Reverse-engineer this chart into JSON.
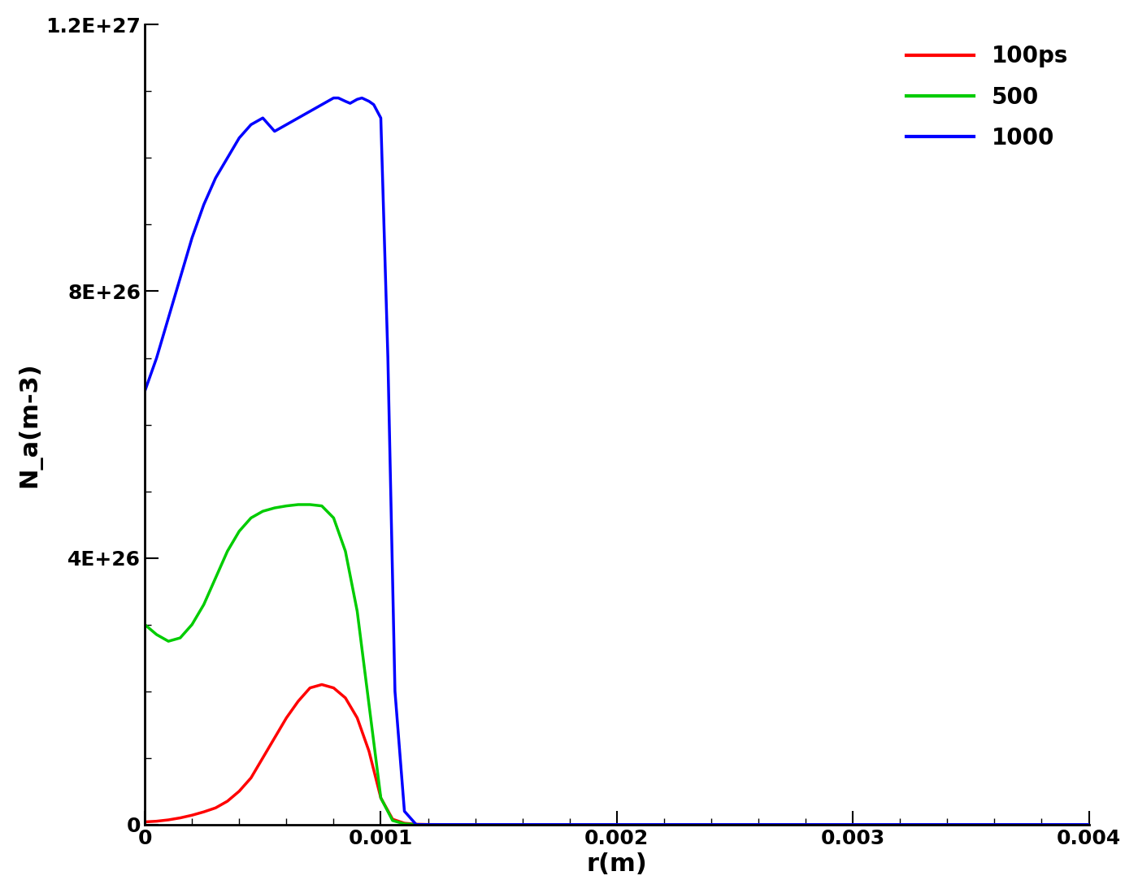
{
  "title": "",
  "xlabel": "r(m)",
  "ylabel": "N_a(m-3)",
  "xlim": [
    0,
    0.004
  ],
  "ylim": [
    0,
    1.2e+27
  ],
  "yticks": [
    0,
    4e+26,
    8e+26,
    1.2e+27
  ],
  "ytick_labels": [
    "0",
    "4E+26",
    "8E+26",
    "1.2E+27"
  ],
  "xticks": [
    0,
    0.001,
    0.002,
    0.003,
    0.004
  ],
  "xtick_labels": [
    "0",
    "0.001",
    "0.002",
    "0.003",
    "0.004"
  ],
  "legend_labels": [
    "100ps",
    "500",
    "1000"
  ],
  "legend_colors": [
    "#ff0000",
    "#00cc00",
    "#0000ff"
  ],
  "line_width": 2.5,
  "background_color": "#ffffff",
  "tick_label_fontsize": 18,
  "axis_label_fontsize": 22,
  "legend_fontsize": 20,
  "curves": {
    "red": {
      "x": [
        0.0,
        5e-05,
        0.0001,
        0.00015,
        0.0002,
        0.00025,
        0.0003,
        0.00035,
        0.0004,
        0.00045,
        0.0005,
        0.00055,
        0.0006,
        0.00065,
        0.0007,
        0.00075,
        0.0008,
        0.00085,
        0.0009,
        0.00095,
        0.001,
        0.00105,
        0.0011,
        0.00115,
        0.0012,
        0.0013,
        0.002,
        0.004
      ],
      "y": [
        4e+24,
        5e+24,
        7e+24,
        1e+25,
        1.4e+25,
        1.9e+25,
        2.5e+25,
        3.5e+25,
        5e+25,
        7e+25,
        1e+26,
        1.3e+26,
        1.6e+26,
        1.85e+26,
        2.05e+26,
        2.1e+26,
        2.05e+26,
        1.9e+26,
        1.6e+26,
        1.1e+26,
        4e+25,
        8e+24,
        2e+24,
        5e+23,
        1e+23,
        0,
        0,
        0
      ]
    },
    "green": {
      "x": [
        0.0,
        5e-05,
        0.0001,
        0.00015,
        0.0002,
        0.00025,
        0.0003,
        0.00035,
        0.0004,
        0.00045,
        0.0005,
        0.00055,
        0.0006,
        0.00065,
        0.0007,
        0.00075,
        0.0008,
        0.00085,
        0.0009,
        0.00095,
        0.001,
        0.00105,
        0.0011,
        0.00115,
        0.0012,
        0.0013,
        0.002,
        0.004
      ],
      "y": [
        3e+26,
        2.85e+26,
        2.75e+26,
        2.8e+26,
        3e+26,
        3.3e+26,
        3.7e+26,
        4.1e+26,
        4.4e+26,
        4.6e+26,
        4.7e+26,
        4.75e+26,
        4.78e+26,
        4.8e+26,
        4.8e+26,
        4.78e+26,
        4.6e+26,
        4.1e+26,
        3.2e+26,
        1.8e+26,
        4e+25,
        6e+24,
        1e+24,
        1e+23,
        0,
        0,
        0,
        0
      ]
    },
    "blue": {
      "x": [
        0.0,
        5e-05,
        0.0001,
        0.00015,
        0.0002,
        0.00025,
        0.0003,
        0.00035,
        0.0004,
        0.00045,
        0.0005,
        0.00055,
        0.0006,
        0.00065,
        0.0007,
        0.00075,
        0.0008,
        0.00082,
        0.00085,
        0.00087,
        0.0009,
        0.00092,
        0.00095,
        0.00097,
        0.001,
        0.00103,
        0.00106,
        0.0011,
        0.00115,
        0.0012,
        0.0013,
        0.002,
        0.004
      ],
      "y": [
        6.5e+26,
        7e+26,
        7.6e+26,
        8.2e+26,
        8.8e+26,
        9.3e+26,
        9.7e+26,
        1e+27,
        1.03e+27,
        1.05e+27,
        1.06e+27,
        1.04e+27,
        1.05e+27,
        1.06e+27,
        1.07e+27,
        1.08e+27,
        1.09e+27,
        1.09e+27,
        1.085e+27,
        1.082e+27,
        1.088e+27,
        1.09e+27,
        1.085e+27,
        1.08e+27,
        1.06e+27,
        7e+26,
        2e+26,
        2e+25,
        0,
        0,
        0,
        0,
        0
      ]
    }
  }
}
